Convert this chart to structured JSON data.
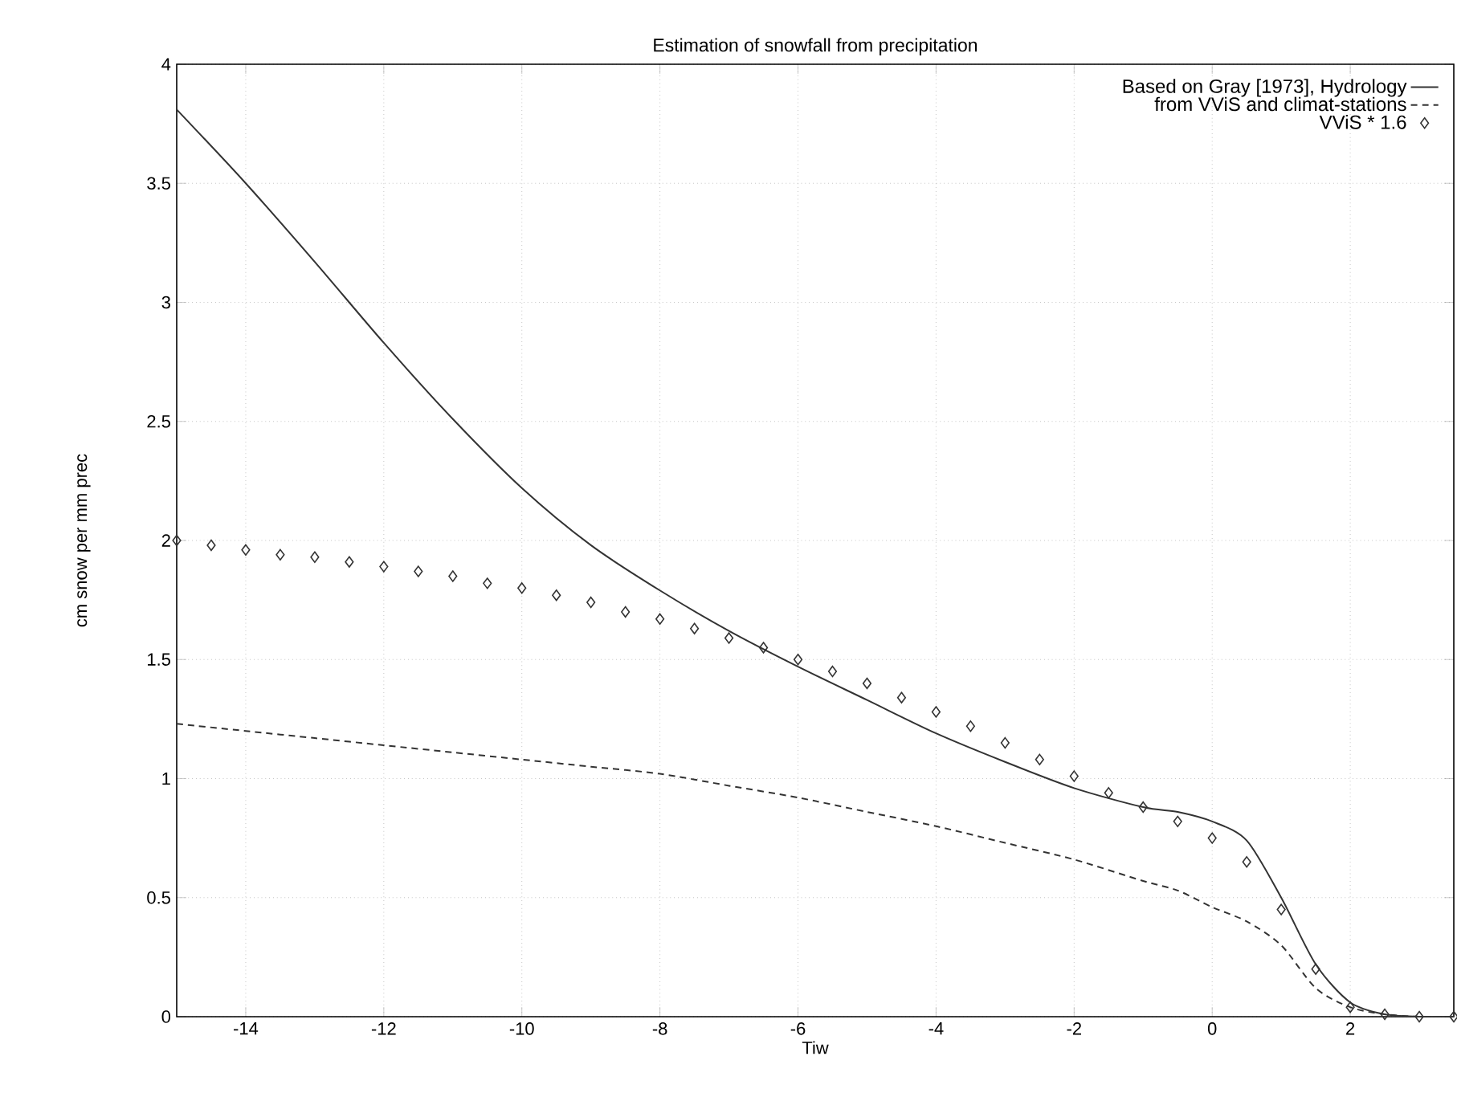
{
  "chart_data": {
    "type": "line",
    "title": "Estimation of snowfall from precipitation",
    "xlabel": "Tiw",
    "ylabel": "cm snow per mm prec",
    "xlim": [
      -15,
      3.5
    ],
    "ylim": [
      0,
      4
    ],
    "xticks": [
      -14,
      -12,
      -10,
      -8,
      -6,
      -4,
      -2,
      0,
      2
    ],
    "yticks": [
      0,
      0.5,
      1,
      1.5,
      2,
      2.5,
      3,
      3.5,
      4
    ],
    "grid": true,
    "legend": "top right",
    "series": [
      {
        "name": "Based on Gray [1973], Hydrology",
        "color": "#333333",
        "line_style": "solid",
        "marker": "none",
        "x": [
          -15,
          -14,
          -13,
          -12,
          -11,
          -10,
          -9,
          -8,
          -7,
          -6,
          -5,
          -4,
          -3,
          -2,
          -1,
          -0.5,
          0,
          0.5,
          1,
          1.5,
          2,
          2.5,
          3,
          3.5
        ],
        "values": [
          3.81,
          3.5,
          3.17,
          2.83,
          2.51,
          2.22,
          1.98,
          1.79,
          1.62,
          1.47,
          1.33,
          1.19,
          1.07,
          0.96,
          0.88,
          0.86,
          0.82,
          0.74,
          0.5,
          0.22,
          0.06,
          0.01,
          0,
          0
        ]
      },
      {
        "name": "from VViS and climat-stations",
        "color": "#333333",
        "line_style": "dashed",
        "marker": "none",
        "x": [
          -15,
          -14,
          -13,
          -12,
          -11,
          -10,
          -9,
          -8,
          -7,
          -6,
          -5,
          -4,
          -3,
          -2,
          -1,
          -0.5,
          0,
          0.5,
          1,
          1.5,
          2,
          2.5,
          3,
          3.5
        ],
        "values": [
          1.23,
          1.2,
          1.17,
          1.14,
          1.11,
          1.08,
          1.05,
          1.02,
          0.97,
          0.92,
          0.86,
          0.8,
          0.73,
          0.66,
          0.57,
          0.53,
          0.46,
          0.4,
          0.3,
          0.12,
          0.04,
          0.01,
          0,
          0
        ]
      },
      {
        "name": "VViS * 1.6",
        "type": "scatter",
        "color": "#333333",
        "marker": "diamond",
        "x": [
          -15,
          -14.5,
          -14,
          -13.5,
          -13,
          -12.5,
          -12,
          -11.5,
          -11,
          -10.5,
          -10,
          -9.5,
          -9,
          -8.5,
          -8,
          -7.5,
          -7,
          -6.5,
          -6,
          -5.5,
          -5,
          -4.5,
          -4,
          -3.5,
          -3,
          -2.5,
          -2,
          -1.5,
          -1,
          -0.5,
          0,
          0.5,
          1,
          1.5,
          2,
          2.5,
          3,
          3.5
        ],
        "values": [
          2.0,
          1.98,
          1.96,
          1.94,
          1.93,
          1.91,
          1.89,
          1.87,
          1.85,
          1.82,
          1.8,
          1.77,
          1.74,
          1.7,
          1.67,
          1.63,
          1.59,
          1.55,
          1.5,
          1.45,
          1.4,
          1.34,
          1.28,
          1.22,
          1.15,
          1.08,
          1.01,
          0.94,
          0.88,
          0.82,
          0.75,
          0.65,
          0.45,
          0.2,
          0.04,
          0.01,
          0,
          0
        ]
      }
    ]
  }
}
